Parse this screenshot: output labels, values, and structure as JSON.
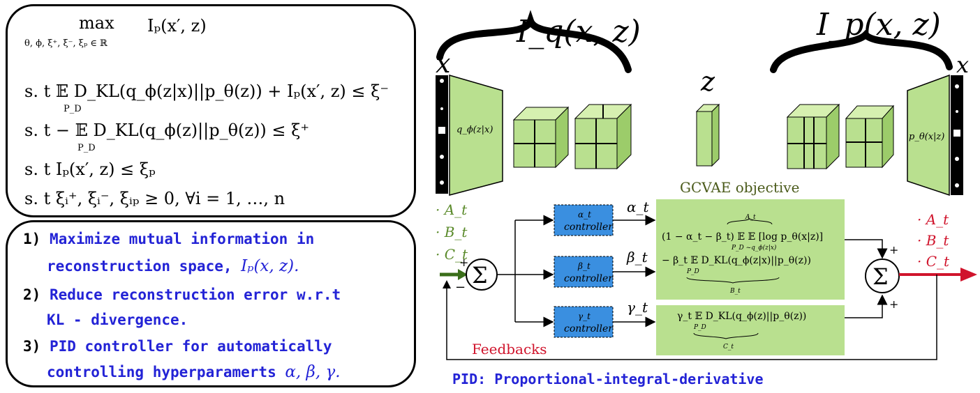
{
  "optimization": {
    "max_label": "max",
    "max_subscript": "θ, ϕ, ξ⁺, ξ⁻, ξₚ ∈ ℝ",
    "objective": "Iₚ(x′, z)",
    "constraints": [
      "s. t   𝔼 D_KL(q_ϕ(z|x)||p_θ(z))  + Iₚ(x′, z)   ≤ ξ⁻",
      "s. t   − 𝔼 D_KL(q_ϕ(z)||p_θ(z))   ≤  ξ⁺",
      "s. t   Iₚ(x′, z)   ≤  ξₚ",
      "s. t   ξᵢ⁺, ξᵢ⁻, ξᵢₚ  ≥  0,  ∀i  =  1,  …,  n"
    ],
    "expectation_subscript": "P_D"
  },
  "goals": [
    {
      "num": "1)",
      "text_line1": "Maximize mutual information in",
      "text_line2": "reconstruction space, ",
      "math": "Iₚ(x, z)."
    },
    {
      "num": "2)",
      "text_line1": "Reduce reconstruction error w.r.t",
      "text_line2": "KL - divergence."
    },
    {
      "num": "3)",
      "text_line1": "PID controller for automatically",
      "text_line2": "controlling hyperparamerts ",
      "math": "α,  β,  γ."
    }
  ],
  "diagram": {
    "iq_label": "I_q(x, z)",
    "ip_label": "I_p(x, z)",
    "x_input": "x",
    "x_output": "x",
    "z_label": "z",
    "encoder_label": "q_ϕ(z|x)",
    "decoder_label": "p_θ(x|z)",
    "gcvae_title": "GCVAE objective",
    "inputs": [
      "· A_t",
      "· B_t",
      "· C_t"
    ],
    "outputs": [
      "· A_t",
      "· B_t",
      "· C_t"
    ],
    "controllers": [
      {
        "symbol": "α_t",
        "name": "controller",
        "signal": "α_t"
      },
      {
        "symbol": "β_t",
        "name": "controller",
        "signal": "β_t"
      },
      {
        "symbol": "γ_t",
        "name": "controller",
        "signal": "γ_t"
      }
    ],
    "obj_term1": "(1 − α_t − β_t) 𝔼  𝔼  [log p_θ(x|z)]",
    "obj_term1_sub": "P_D  ~q_ϕ(z|x)",
    "obj_term1_brace": "A_t",
    "obj_term2": "− β_t 𝔼 D_KL(q_ϕ(z|x)||p_θ(z))",
    "obj_term2_sub": "P_D",
    "obj_term2_brace": "B_t",
    "obj_term3": "γ_t 𝔼 D_KL(q_ϕ(z)||p_θ(z))",
    "obj_term3_sub": "P_D",
    "obj_term3_brace": "C_t",
    "sum_symbol": "Σ",
    "plus": "+",
    "minus": "−",
    "feedback_label": "Feedbacks",
    "colors": {
      "green_arrow": "#3a6e1a",
      "red": "#d0142c",
      "block_green": "#b9e08f",
      "controller_blue": "#3a8fe0",
      "input_text": "#5a8a2a",
      "title_text": "#4a5a1a"
    }
  },
  "pid_caption": "PID: Proportional-integral-derivative"
}
